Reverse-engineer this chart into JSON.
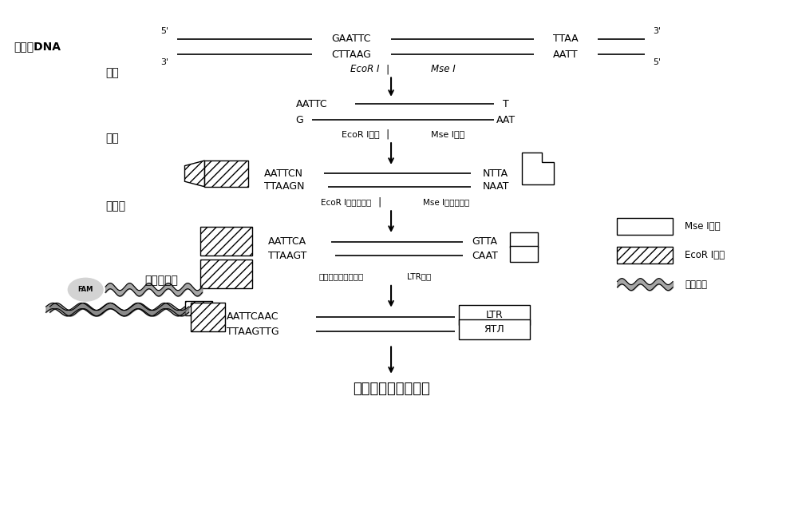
{
  "fig_width": 10.0,
  "fig_height": 6.6,
  "bg_color": "#ffffff",
  "text_color": "#000000",
  "title_bottom": "荧光毛细管电泳检测",
  "genomic_dna_label": "基因组DNA",
  "enzyme_cut_label": "酵切",
  "ligation_label": "连接",
  "pre_amp_label": "预扩增",
  "sel_amp_label": "选择性扩增",
  "ecorI_label": "EcoR I",
  "mseI_label": "Mse I",
  "ecorI_adapter_label": "EcoR I接头",
  "mseI_adapter_label": "Mse I接头",
  "ecorI_preamp_label": "EcoR I预扩增引物",
  "mseI_preamp_label": "Mse I预扩增引物",
  "sel_amp_primer_label": "特异选择性扩增引物",
  "ltr_primer_label": "LTR引物",
  "legend_mse": "Mse I接头",
  "legend_ecor": "EcoR I接头",
  "legend_tail": "尾巴引物",
  "fam_label": "FAM"
}
